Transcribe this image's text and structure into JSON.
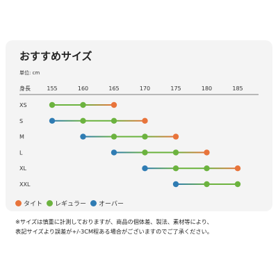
{
  "title": "おすすめサイズ",
  "unit_label": "単位: cm",
  "note_lines": [
    "※サイズは慎重に計測しておりますが、商品の個体差、製法、素材等により、",
    "表記サイズより誤差が+/-3CM程ある場合がございますのでご了承ください。"
  ],
  "colors": {
    "tight": "#e8743b",
    "regular": "#6cb33f",
    "over": "#2f7cb3",
    "line": "#bbbbbb"
  },
  "chart_data": {
    "type": "scatter",
    "x_label": "身長",
    "x_ticks": [
      155,
      160,
      165,
      170,
      175,
      180,
      185
    ],
    "xlim": [
      155,
      185
    ],
    "categories": [
      "XS",
      "S",
      "M",
      "L",
      "XL",
      "XXL"
    ],
    "legend": [
      {
        "key": "tight",
        "label": "タイト"
      },
      {
        "key": "regular",
        "label": "レギュラー"
      },
      {
        "key": "over",
        "label": "オーバー"
      }
    ],
    "legend_position": "bottom-left",
    "rows": [
      {
        "size": "XS",
        "points": [
          {
            "x": 155,
            "fit": "regular"
          },
          {
            "x": 160,
            "fit": "regular"
          },
          {
            "x": 165,
            "fit": "tight"
          }
        ]
      },
      {
        "size": "S",
        "points": [
          {
            "x": 155,
            "fit": "over"
          },
          {
            "x": 160,
            "fit": "regular"
          },
          {
            "x": 165,
            "fit": "regular"
          },
          {
            "x": 170,
            "fit": "tight"
          }
        ]
      },
      {
        "size": "M",
        "points": [
          {
            "x": 160,
            "fit": "over"
          },
          {
            "x": 165,
            "fit": "regular"
          },
          {
            "x": 170,
            "fit": "regular"
          },
          {
            "x": 175,
            "fit": "tight"
          }
        ]
      },
      {
        "size": "L",
        "points": [
          {
            "x": 165,
            "fit": "over"
          },
          {
            "x": 170,
            "fit": "regular"
          },
          {
            "x": 175,
            "fit": "regular"
          },
          {
            "x": 180,
            "fit": "tight"
          }
        ]
      },
      {
        "size": "XL",
        "points": [
          {
            "x": 170,
            "fit": "over"
          },
          {
            "x": 175,
            "fit": "regular"
          },
          {
            "x": 180,
            "fit": "regular"
          },
          {
            "x": 185,
            "fit": "tight"
          }
        ]
      },
      {
        "size": "XXL",
        "points": [
          {
            "x": 175,
            "fit": "over"
          },
          {
            "x": 180,
            "fit": "regular"
          },
          {
            "x": 185,
            "fit": "regular"
          }
        ]
      }
    ]
  }
}
